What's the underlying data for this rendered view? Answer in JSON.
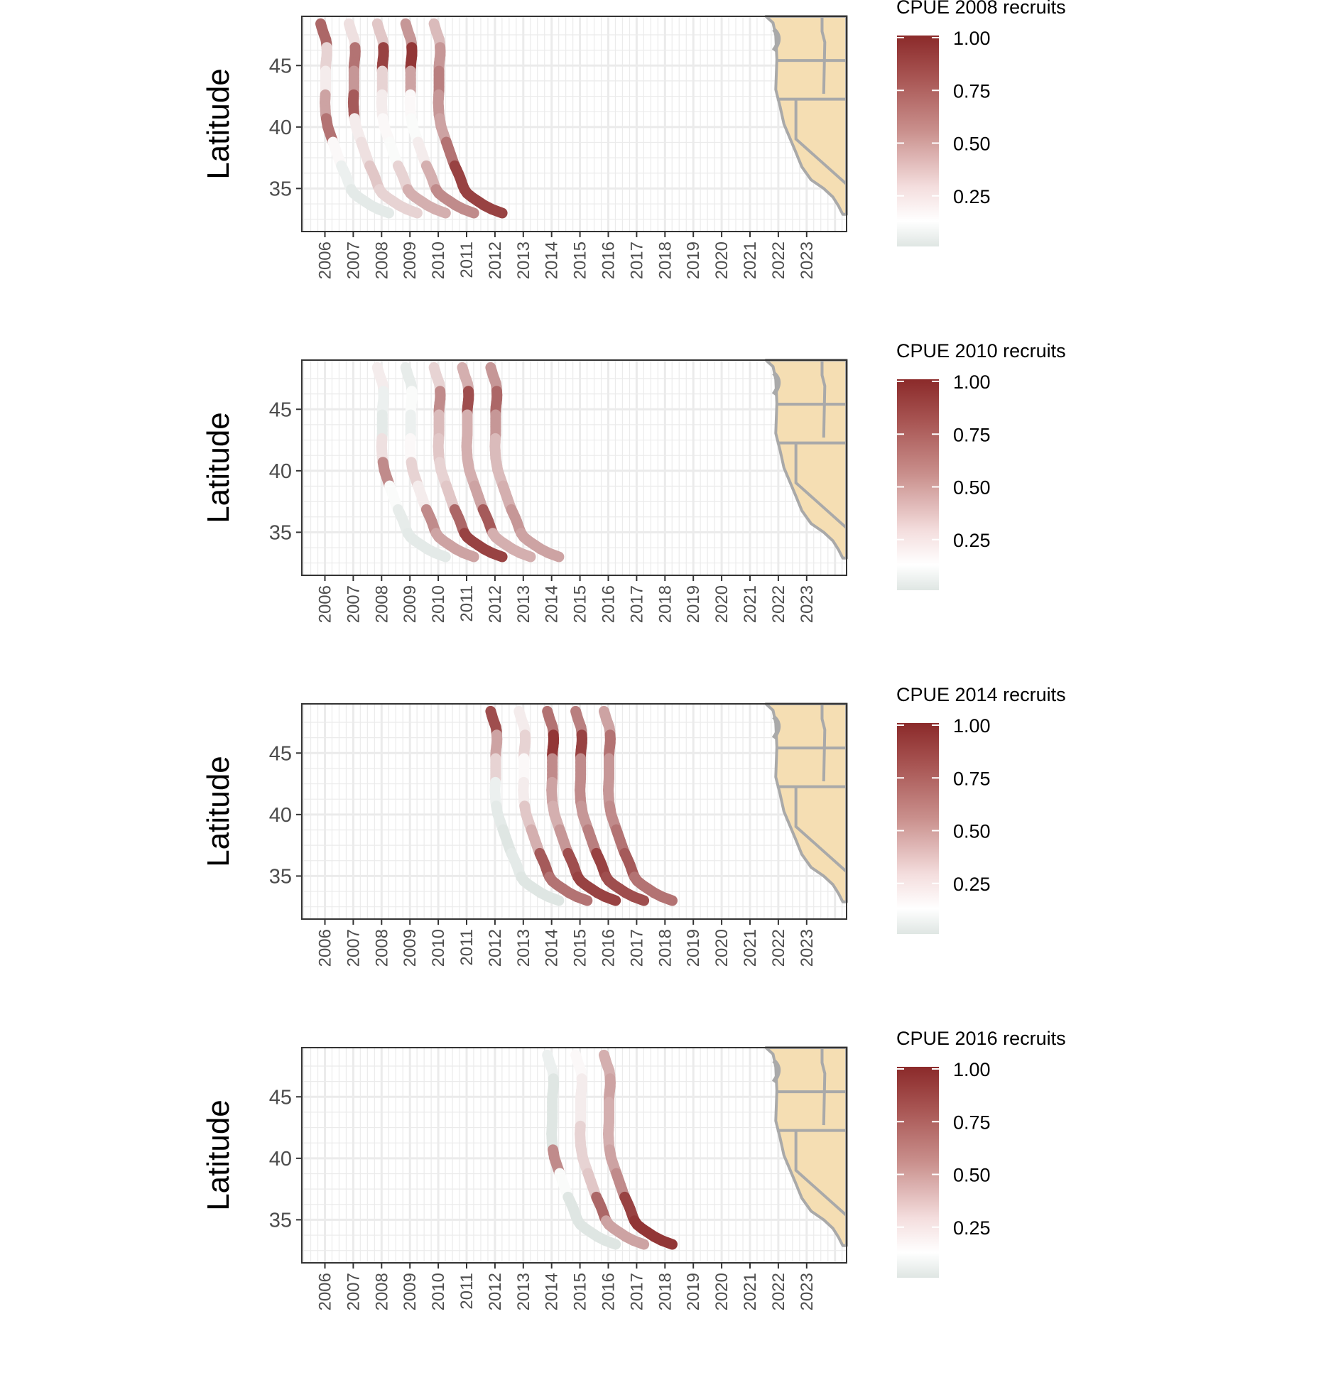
{
  "chart_data": [
    {
      "type": "heatmap",
      "ylabel": "Latitude",
      "xlabel": "",
      "x_ticks": [
        "2006",
        "2007",
        "2008",
        "2009",
        "2010",
        "2011",
        "2012",
        "2013",
        "2014",
        "2015",
        "2016",
        "2017",
        "2018",
        "2019",
        "2020",
        "2021",
        "2022",
        "2023"
      ],
      "y_ticks": [
        "35",
        "40",
        "45"
      ],
      "ylim": [
        31.5,
        49
      ],
      "grid": true,
      "legend": {
        "title": "CPUE 2008 recruits",
        "ticks": [
          "1.00",
          "0.75",
          "0.50",
          "0.25"
        ],
        "placement": "right",
        "gradient_colors": [
          "#8b2a2a",
          "#ffffff",
          "#dfe6e3"
        ]
      },
      "inset_map": "US West Coast (Washington, Oregon, California)",
      "bands": [
        {
          "year": 2006,
          "intensity": [
            0.75,
            0.3,
            0.2,
            0.5,
            0.7,
            0.15,
            0.05,
            0.02
          ]
        },
        {
          "year": 2007,
          "intensity": [
            0.25,
            0.7,
            0.55,
            0.8,
            0.2,
            0.25,
            0.35,
            0.3
          ]
        },
        {
          "year": 2008,
          "intensity": [
            0.35,
            0.9,
            0.3,
            0.2,
            0.15,
            0.1,
            0.3,
            0.45
          ]
        },
        {
          "year": 2009,
          "intensity": [
            0.55,
            0.95,
            0.5,
            0.15,
            0.1,
            0.2,
            0.45,
            0.6
          ]
        },
        {
          "year": 2010,
          "intensity": [
            0.4,
            0.55,
            0.65,
            0.55,
            0.5,
            0.7,
            0.9,
            0.9
          ]
        }
      ]
    },
    {
      "type": "heatmap",
      "ylabel": "Latitude",
      "xlabel": "",
      "x_ticks": [
        "2006",
        "2007",
        "2008",
        "2009",
        "2010",
        "2011",
        "2012",
        "2013",
        "2014",
        "2015",
        "2016",
        "2017",
        "2018",
        "2019",
        "2020",
        "2021",
        "2022",
        "2023"
      ],
      "y_ticks": [
        "35",
        "40",
        "45"
      ],
      "ylim": [
        31.5,
        49
      ],
      "grid": true,
      "legend": {
        "title": "CPUE 2010 recruits",
        "ticks": [
          "1.00",
          "0.75",
          "0.50",
          "0.25"
        ],
        "placement": "right",
        "gradient_colors": [
          "#8b2a2a",
          "#ffffff",
          "#dfe6e3"
        ]
      },
      "inset_map": "US West Coast (Washington, Oregon, California)",
      "bands": [
        {
          "year": 2008,
          "intensity": [
            0.2,
            0.05,
            0.02,
            0.25,
            0.6,
            0.1,
            0.03,
            0.02
          ]
        },
        {
          "year": 2009,
          "intensity": [
            0.03,
            0.1,
            0.05,
            0.15,
            0.3,
            0.2,
            0.6,
            0.5
          ]
        },
        {
          "year": 2010,
          "intensity": [
            0.3,
            0.6,
            0.4,
            0.35,
            0.3,
            0.35,
            0.75,
            0.9
          ]
        },
        {
          "year": 2011,
          "intensity": [
            0.45,
            0.85,
            0.45,
            0.45,
            0.45,
            0.5,
            0.8,
            0.45
          ]
        },
        {
          "year": 2012,
          "intensity": [
            0.55,
            0.75,
            0.55,
            0.4,
            0.4,
            0.45,
            0.55,
            0.5
          ]
        }
      ]
    },
    {
      "type": "heatmap",
      "ylabel": "Latitude",
      "xlabel": "",
      "x_ticks": [
        "2006",
        "2007",
        "2008",
        "2009",
        "2010",
        "2011",
        "2012",
        "2013",
        "2014",
        "2015",
        "2016",
        "2017",
        "2018",
        "2019",
        "2020",
        "2021",
        "2022",
        "2023"
      ],
      "y_ticks": [
        "35",
        "40",
        "45"
      ],
      "ylim": [
        31.5,
        49
      ],
      "grid": true,
      "legend": {
        "title": "CPUE 2014 recruits",
        "ticks": [
          "1.00",
          "0.75",
          "0.50",
          "0.25"
        ],
        "placement": "right",
        "gradient_colors": [
          "#8b2a2a",
          "#ffffff",
          "#dfe6e3"
        ]
      },
      "inset_map": "US West Coast (Washington, Oregon, California)",
      "bands": [
        {
          "year": 2012,
          "intensity": [
            0.85,
            0.5,
            0.3,
            0.05,
            0.02,
            0.0,
            0.02,
            0.0
          ]
        },
        {
          "year": 2013,
          "intensity": [
            0.2,
            0.3,
            0.15,
            0.2,
            0.35,
            0.45,
            0.8,
            0.7
          ]
        },
        {
          "year": 2014,
          "intensity": [
            0.7,
            0.95,
            0.6,
            0.5,
            0.45,
            0.55,
            0.85,
            0.9
          ]
        },
        {
          "year": 2015,
          "intensity": [
            0.65,
            0.9,
            0.6,
            0.6,
            0.55,
            0.65,
            0.9,
            0.85
          ]
        },
        {
          "year": 2016,
          "intensity": [
            0.5,
            0.7,
            0.55,
            0.55,
            0.6,
            0.7,
            0.8,
            0.7
          ]
        }
      ]
    },
    {
      "type": "heatmap",
      "ylabel": "Latitude",
      "xlabel": "",
      "x_ticks": [
        "2006",
        "2007",
        "2008",
        "2009",
        "2010",
        "2011",
        "2012",
        "2013",
        "2014",
        "2015",
        "2016",
        "2017",
        "2018",
        "2019",
        "2020",
        "2021",
        "2022",
        "2023"
      ],
      "y_ticks": [
        "35",
        "40",
        "45"
      ],
      "ylim": [
        31.5,
        49
      ],
      "grid": true,
      "legend": {
        "title": "CPUE 2016 recruits",
        "ticks": [
          "1.00",
          "0.75",
          "0.50",
          "0.25"
        ],
        "placement": "right",
        "gradient_colors": [
          "#8b2a2a",
          "#ffffff",
          "#dfe6e3"
        ]
      },
      "inset_map": "US West Coast (Washington, Oregon, California)",
      "bands": [
        {
          "year": 2014,
          "intensity": [
            0.05,
            0.0,
            0.0,
            0.0,
            0.6,
            0.1,
            0.0,
            0.0
          ]
        },
        {
          "year": 2015,
          "intensity": [
            0.15,
            0.2,
            0.2,
            0.3,
            0.3,
            0.35,
            0.75,
            0.5
          ]
        },
        {
          "year": 2016,
          "intensity": [
            0.45,
            0.5,
            0.45,
            0.45,
            0.5,
            0.6,
            0.9,
            0.95
          ]
        }
      ]
    }
  ],
  "colors": {
    "high": "#8b2a2a",
    "mid": "#ffffff",
    "low": "#dfe6e3",
    "land": "#f5deb3",
    "borders": "#a9a9a9",
    "grid": "#ebebeb",
    "panel_border": "#333333"
  }
}
